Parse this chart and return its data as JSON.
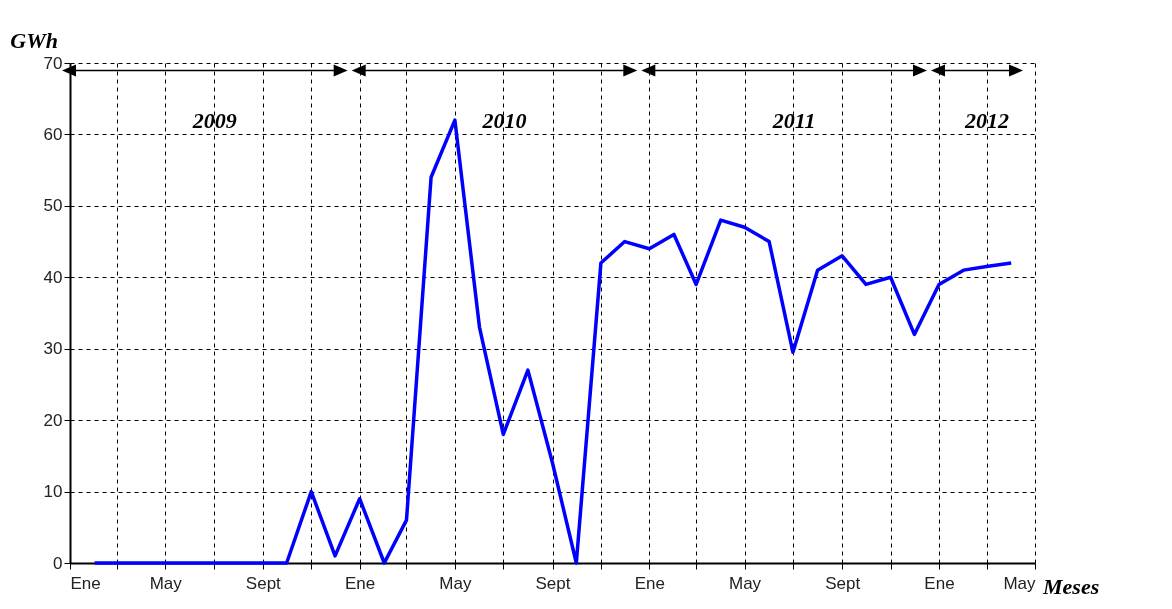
{
  "chart_data": {
    "type": "line",
    "xlabel": "Meses",
    "ylabel": "GWh",
    "x": [
      "2009-02",
      "2009-03",
      "2009-04",
      "2009-05",
      "2009-06",
      "2009-07",
      "2009-08",
      "2009-09",
      "2009-10",
      "2009-11",
      "2009-12",
      "2010-01",
      "2010-02",
      "2010-03",
      "2010-04",
      "2010-05",
      "2010-06",
      "2010-07",
      "2010-08",
      "2010-09",
      "2010-10",
      "2010-11",
      "2010-12",
      "2011-01",
      "2011-02",
      "2011-03",
      "2011-04",
      "2011-05",
      "2011-06",
      "2011-07",
      "2011-08",
      "2011-09",
      "2011-10",
      "2011-11",
      "2011-12",
      "2012-01",
      "2012-02",
      "2012-03",
      "2012-04"
    ],
    "series": [
      {
        "color": "#0000ff",
        "values": [
          0,
          0,
          0,
          0,
          0,
          0,
          0,
          0,
          0,
          10,
          1,
          9,
          0,
          6,
          54,
          62,
          33,
          18,
          27,
          14,
          0,
          42,
          45,
          44,
          46,
          39,
          48,
          47,
          45,
          29.5,
          41,
          43,
          39,
          40,
          32,
          39,
          41,
          41.5,
          42
        ]
      }
    ],
    "xlim": [
      "2009-01",
      "2012-05"
    ],
    "xticks": [
      {
        "value": "2009-01",
        "label": "Ene"
      },
      {
        "value": "2009-03",
        "label": null
      },
      {
        "value": "2009-05",
        "label": "May"
      },
      {
        "value": "2009-07",
        "label": null
      },
      {
        "value": "2009-09",
        "label": "Sept"
      },
      {
        "value": "2009-11",
        "label": null
      },
      {
        "value": "2010-01",
        "label": "Ene"
      },
      {
        "value": "2010-03",
        "label": null
      },
      {
        "value": "2010-05",
        "label": "May"
      },
      {
        "value": "2010-07",
        "label": null
      },
      {
        "value": "2010-09",
        "label": "Sept"
      },
      {
        "value": "2010-11",
        "label": null
      },
      {
        "value": "2011-01",
        "label": "Ene"
      },
      {
        "value": "2011-03",
        "label": null
      },
      {
        "value": "2011-05",
        "label": "May"
      },
      {
        "value": "2011-07",
        "label": null
      },
      {
        "value": "2011-09",
        "label": "Sept"
      },
      {
        "value": "2011-11",
        "label": null
      },
      {
        "value": "2012-01",
        "label": "Ene"
      },
      {
        "value": "2012-03",
        "label": null
      },
      {
        "value": "2012-05",
        "label": "May"
      }
    ],
    "ylim": [
      0,
      70
    ],
    "yticks": [
      0,
      10,
      20,
      30,
      40,
      50,
      60,
      70
    ],
    "grid": true,
    "marker": "none",
    "line_style": "solid",
    "annotations": [
      "2009",
      "2010",
      "2011",
      "2012"
    ]
  }
}
